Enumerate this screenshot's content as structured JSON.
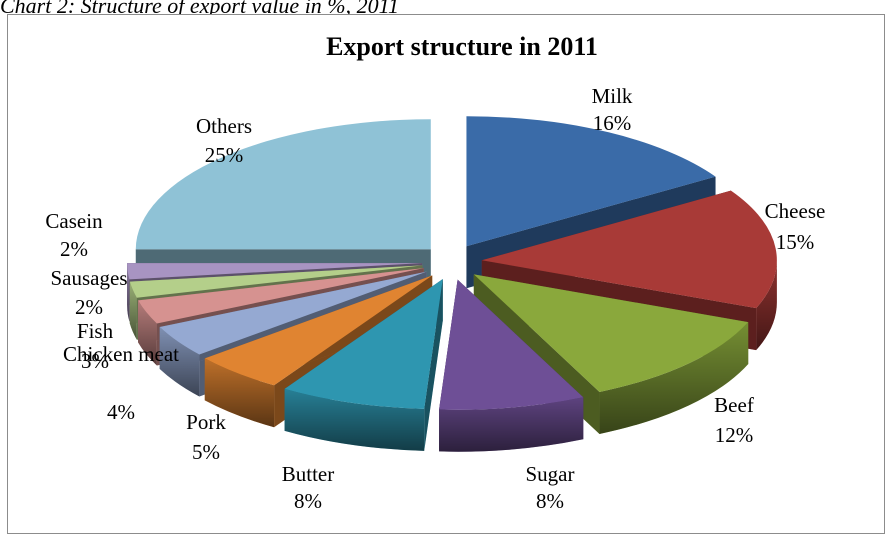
{
  "caption": "Chart 2: Structure of export value in %, 2011",
  "chart_data": {
    "type": "pie",
    "title": "Export structure in 2011",
    "categories": [
      "Milk",
      "Cheese",
      "Beef",
      "Sugar",
      "Butter",
      "Pork",
      "Chicken meat",
      "Fish",
      "Sausages",
      "Casein",
      "Others"
    ],
    "values": [
      16,
      15,
      12,
      8,
      8,
      5,
      4,
      3,
      2,
      2,
      25
    ],
    "data_labels": [
      "16%",
      "15%",
      "12%",
      "8%",
      "8%",
      "5%",
      "4%",
      "3%",
      "2%",
      "2%",
      "25%"
    ],
    "colors": [
      "#3a6ba8",
      "#a83a37",
      "#8aa83c",
      "#6e4f96",
      "#2e96b0",
      "#e08431",
      "#95a9d2",
      "#d69290",
      "#b4cf8a",
      "#a894c2",
      "#8fc2d6"
    ],
    "exploded": true,
    "style": "3d",
    "legend": "none",
    "grid": false
  }
}
